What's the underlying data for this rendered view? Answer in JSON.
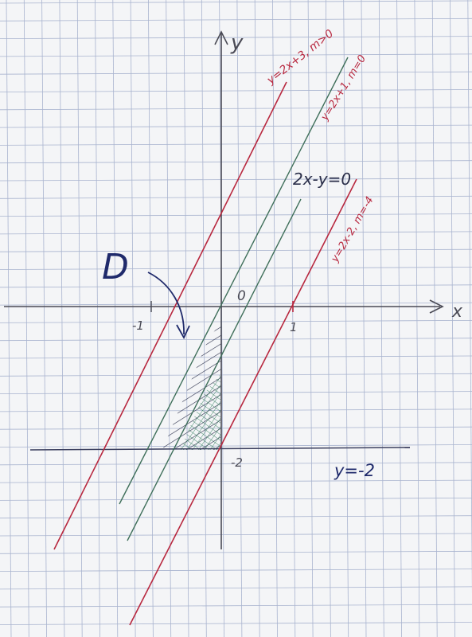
{
  "axes": {
    "x_label": "x",
    "y_label": "y",
    "origin_label": "0",
    "tick_x_neg1": "-1",
    "tick_x_1": "1",
    "tick_y_neg2": "-2"
  },
  "lines": {
    "red_upper": {
      "label": "y=2x+3, m>0",
      "color": "#b8283f"
    },
    "green_upper": {
      "label": "y=2x+1, m=0",
      "color": "#3f6f5a"
    },
    "green_mid": {
      "label": "2x-y=0",
      "color": "#3f6f5a"
    },
    "red_lower": {
      "label": "y=2x-2, m=-4",
      "color": "#b8283f"
    },
    "horizontal": {
      "label": "y=-2",
      "color": "#3b3f5e"
    }
  },
  "region": {
    "label": "D",
    "label_color": "#1f2a6b",
    "hatch_color": "#2b2f4a",
    "cross_hatch_color": "#2f7a5a"
  },
  "colors": {
    "grid": "#a9b4cf",
    "axis": "#4a4a55",
    "paper": "#f4f5f7"
  }
}
